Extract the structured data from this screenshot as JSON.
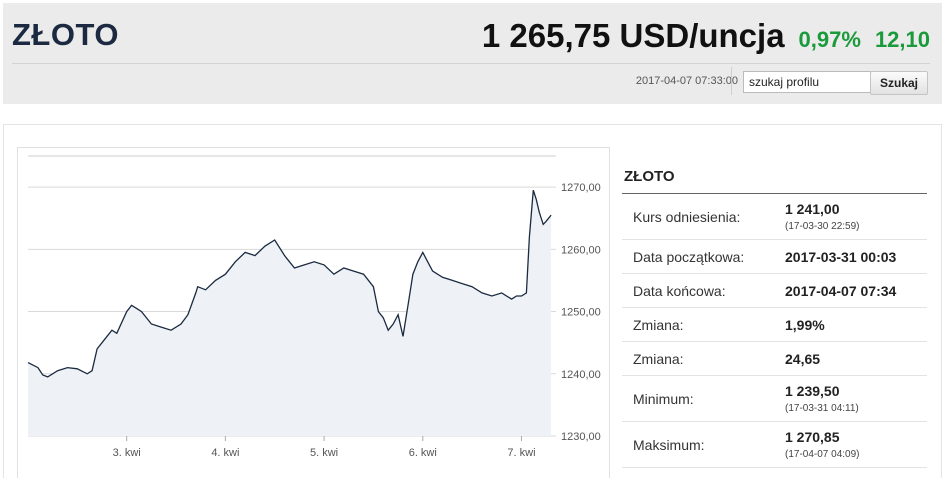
{
  "header": {
    "title": "ZŁOTO",
    "price": "1 265,75 USD/uncja",
    "change_percent": "0,97%",
    "change_abs": "12,10",
    "timestamp": "2017-04-07 07:33:00",
    "change_color": "#1a9a3a"
  },
  "search": {
    "value": "szukaj profilu",
    "button_label": "Szukaj"
  },
  "info": {
    "title": "ZŁOTO",
    "rows": [
      {
        "label": "Kurs odniesienia:",
        "value": "1 241,00",
        "sub": "(17-03-30 22:59)"
      },
      {
        "label": "Data początkowa:",
        "value": "2017-03-31 00:03"
      },
      {
        "label": "Data końcowa:",
        "value": "2017-04-07 07:34"
      },
      {
        "label": "Zmiana:",
        "value": "1,99%"
      },
      {
        "label": "Zmiana:",
        "value": "24,65"
      },
      {
        "label": "Minimum:",
        "value": "1 239,50",
        "sub": "(17-03-31 04:11)"
      },
      {
        "label": "Maksimum:",
        "value": "1 270,85",
        "sub": "(17-04-07 04:09)"
      }
    ]
  },
  "chart_data": {
    "type": "area",
    "ylim": [
      1230,
      1275
    ],
    "y_ticks": [
      "1270,00",
      "1260,00",
      "1250,00",
      "1240,00",
      "1230,00"
    ],
    "y_tick_values": [
      1270,
      1260,
      1250,
      1240,
      1230
    ],
    "x_ticks": [
      "3. kwi",
      "4. kwi",
      "5. kwi",
      "6. kwi",
      "7. kwi"
    ],
    "x_tick_values": [
      1,
      2,
      3,
      4,
      5
    ],
    "x_range": [
      0,
      5.35
    ],
    "line_color": "#1b2a40",
    "fill_color": "#eef2f6",
    "series": [
      {
        "x": [
          0,
          0.1,
          0.15,
          0.2,
          0.3,
          0.4,
          0.5,
          0.6,
          0.65,
          0.7,
          0.75,
          0.85,
          0.9,
          1.0,
          1.05,
          1.1,
          1.15,
          1.25,
          1.35,
          1.45,
          1.55,
          1.62,
          1.7,
          1.72,
          1.8,
          1.9,
          2.0,
          2.1,
          2.2,
          2.3,
          2.4,
          2.5,
          2.6,
          2.65,
          2.7,
          2.8,
          2.9,
          3.0,
          3.1,
          3.2,
          3.3,
          3.4,
          3.5,
          3.55,
          3.6,
          3.65,
          3.7,
          3.75,
          3.8,
          3.85,
          3.9,
          3.95,
          4.0,
          4.05,
          4.1,
          4.2,
          4.3,
          4.4,
          4.5,
          4.6,
          4.7,
          4.8,
          4.9,
          4.95,
          5.0,
          5.05,
          5.08,
          5.12,
          5.15,
          5.18,
          5.22,
          5.25,
          5.3
        ],
        "y": [
          1241.8,
          1241.0,
          1239.8,
          1239.5,
          1240.5,
          1241.0,
          1240.8,
          1240.0,
          1240.5,
          1244.0,
          1245.0,
          1247.0,
          1246.5,
          1250.0,
          1251.0,
          1250.5,
          1250.0,
          1248.0,
          1247.5,
          1247.0,
          1248.0,
          1249.5,
          1253.0,
          1254.0,
          1253.5,
          1255.0,
          1256.0,
          1258.0,
          1259.5,
          1259.0,
          1260.5,
          1261.5,
          1259.0,
          1258.0,
          1257.0,
          1257.5,
          1258.0,
          1257.5,
          1256.0,
          1257.0,
          1256.5,
          1256.0,
          1254.0,
          1250.0,
          1249.0,
          1247.0,
          1248.0,
          1249.5,
          1246.0,
          1251.0,
          1256.0,
          1258.0,
          1259.5,
          1258.0,
          1256.5,
          1255.5,
          1255.0,
          1254.5,
          1254.0,
          1253.0,
          1252.5,
          1253.0,
          1252.0,
          1252.5,
          1252.5,
          1253.0,
          1262.0,
          1269.5,
          1268.0,
          1266.0,
          1264.0,
          1264.5,
          1265.5
        ]
      }
    ]
  }
}
